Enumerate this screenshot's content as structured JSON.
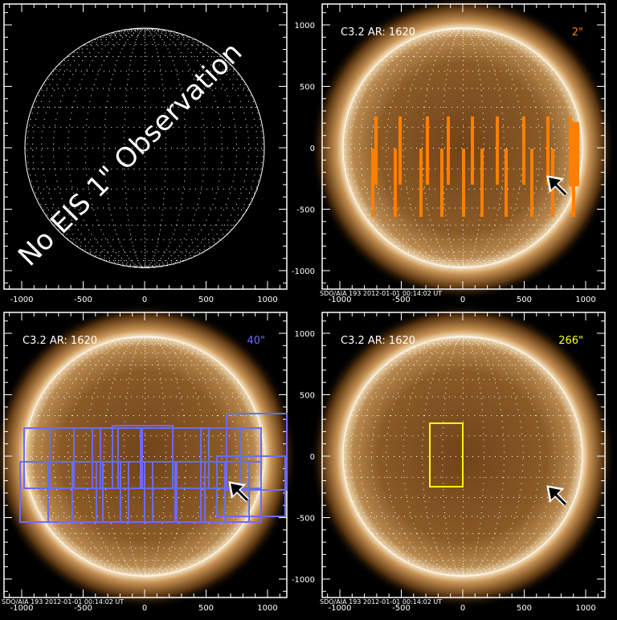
{
  "panels": [
    {
      "id": "no-obs",
      "overlay_text": "No EIS 1\" Observation",
      "has_image": false
    },
    {
      "id": "2arcsec",
      "title": "C3.2 AR: 1620",
      "resolution": "2\"",
      "box_color": "#ff7f00",
      "has_image": true,
      "footer": "SDO/AIA 193   2012-01-01 00:14:02 UT"
    },
    {
      "id": "40arcsec",
      "title": "C3.2 AR: 1620",
      "resolution": "40\"",
      "box_color": "#6b6bff",
      "has_image": true,
      "footer": "SDO/AIA 193   2012-01-01 00:14:02 UT"
    },
    {
      "id": "266arcsec",
      "title": "C3.2 AR: 1620",
      "resolution": "266\"",
      "box_color": "#ffff00",
      "has_image": true,
      "footer": "SDO/AIA 193   2012-01-01 00:14:02 UT"
    }
  ],
  "axis_ticks": [
    "-1000",
    "-500",
    "0",
    "500",
    "1000"
  ],
  "y_ticks": [
    "1000",
    "500",
    "0",
    "-500",
    "-1000"
  ],
  "colors": {
    "sun_dark": "#6a3e16",
    "sun_limb": "#f3dcb4",
    "frame": "#ffffff",
    "arrow": "#000000"
  }
}
